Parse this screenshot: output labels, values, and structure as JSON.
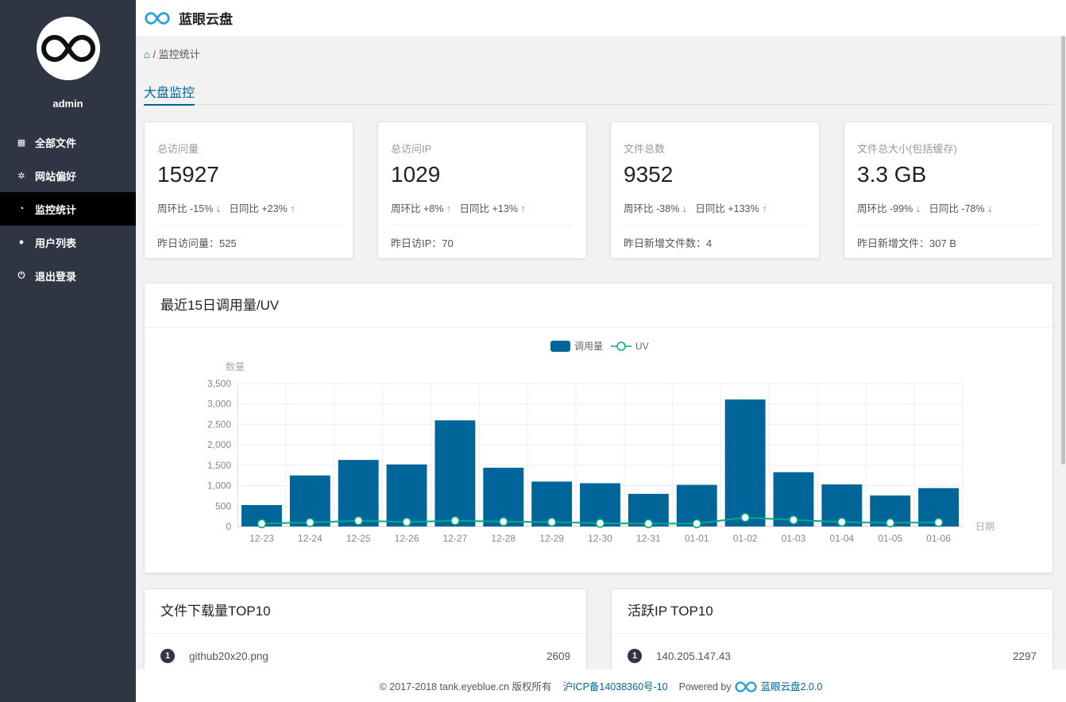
{
  "app": {
    "title": "蓝眼云盘",
    "user": "admin"
  },
  "sidebar": {
    "items": [
      {
        "label": "全部文件",
        "icon": "grid-icon",
        "glyph": "▦",
        "active": false
      },
      {
        "label": "网站偏好",
        "icon": "gear-icon",
        "glyph": "✲",
        "active": false
      },
      {
        "label": "监控统计",
        "icon": "dashboard-icon",
        "glyph": "◔",
        "active": true
      },
      {
        "label": "用户列表",
        "icon": "user-icon",
        "glyph": "●",
        "active": false
      },
      {
        "label": "退出登录",
        "icon": "power-icon",
        "glyph": "⏻",
        "active": false
      }
    ]
  },
  "breadcrumb": {
    "sep": "/",
    "current": "监控统计"
  },
  "tab": "大盘监控",
  "stats": [
    {
      "label": "总访问量",
      "value": "15927",
      "week_label": "周环比",
      "week": "-15%",
      "week_dir": "down",
      "day_label": "日同比",
      "day": "+23%",
      "day_dir": "up",
      "yesterday": "昨日访问量：525"
    },
    {
      "label": "总访问IP",
      "value": "1029",
      "week_label": "周环比",
      "week": "+8%",
      "week_dir": "up",
      "day_label": "日同比",
      "day": "+13%",
      "day_dir": "up",
      "yesterday": "昨日访IP：70"
    },
    {
      "label": "文件总数",
      "value": "9352",
      "week_label": "周环比",
      "week": "-38%",
      "week_dir": "down",
      "day_label": "日同比",
      "day": "+133%",
      "day_dir": "up",
      "yesterday": "昨日新增文件数：4"
    },
    {
      "label": "文件总大小(包括缓存)",
      "value": "3.3 GB",
      "week_label": "周环比",
      "week": "-99%",
      "week_dir": "down",
      "day_label": "日同比",
      "day": "-78%",
      "day_dir": "down",
      "yesterday": "昨日新增文件：307 B"
    }
  ],
  "chart_card": {
    "title": "最近15日调用量/UV"
  },
  "chart_data": {
    "type": "bar",
    "categories": [
      "12-23",
      "12-24",
      "12-25",
      "12-26",
      "12-27",
      "12-28",
      "12-29",
      "12-30",
      "12-31",
      "01-01",
      "01-02",
      "01-03",
      "01-04",
      "01-05",
      "01-06"
    ],
    "series": [
      {
        "name": "调用量",
        "type": "bar",
        "color": "#006699",
        "values": [
          525,
          1250,
          1630,
          1520,
          2600,
          1440,
          1100,
          1060,
          800,
          1020,
          3110,
          1330,
          1030,
          760,
          940
        ]
      },
      {
        "name": "UV",
        "type": "line",
        "color": "#00a88a",
        "values": [
          70,
          100,
          140,
          110,
          140,
          120,
          110,
          80,
          70,
          70,
          220,
          160,
          110,
          90,
          100
        ]
      }
    ],
    "ylabel": "数量",
    "xlabel": "日期",
    "ylim": [
      0,
      3500
    ],
    "yticks": [
      "0",
      "500",
      "1,000",
      "1,500",
      "2,000",
      "2,500",
      "3,000",
      "3,500"
    ],
    "grid": true,
    "legend": "top-center"
  },
  "downloads": {
    "title": "文件下载量TOP10",
    "items": [
      {
        "rank": "1",
        "name": "github20x20.png",
        "count": "2609"
      }
    ]
  },
  "active_ip": {
    "title": "活跃IP TOP10",
    "items": [
      {
        "rank": "1",
        "name": "140.205.147.43",
        "count": "2297"
      }
    ]
  },
  "footer": {
    "copyright": "© 2017-2018 tank.eyeblue.cn 版权所有",
    "icp": "沪ICP备14038360号-10",
    "powered": "Powered by",
    "product": "蓝眼云盘2.0.0"
  }
}
